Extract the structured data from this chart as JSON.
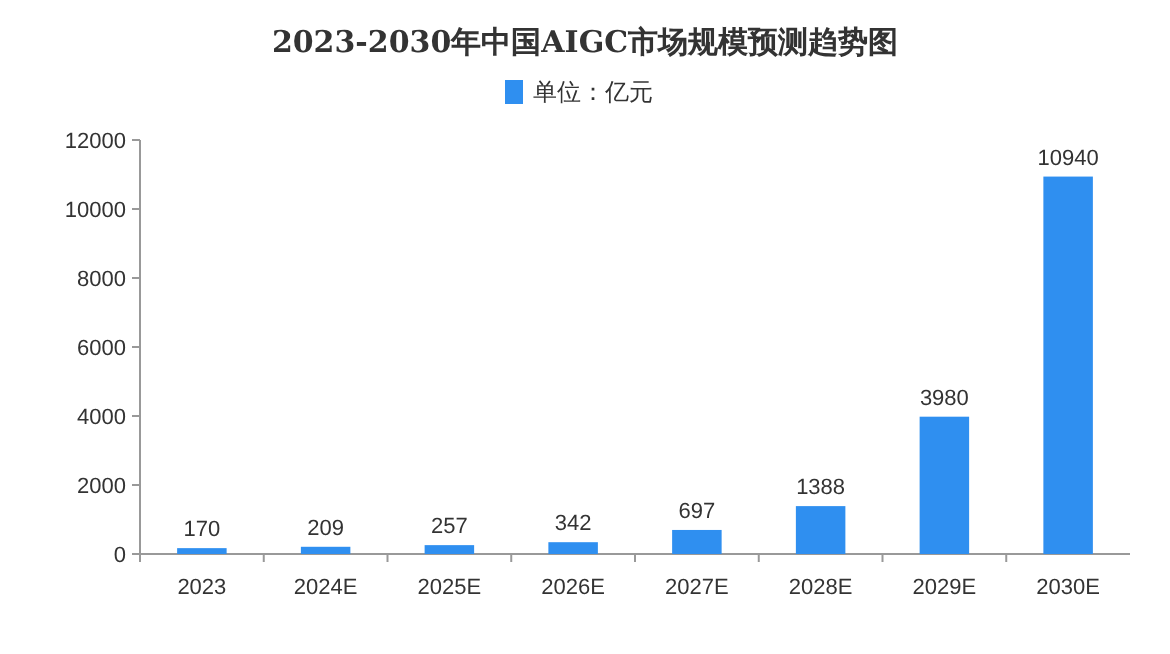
{
  "chart_data": {
    "type": "bar",
    "title": "2023-2030年中国AIGC市场规模预测趋势图",
    "categories": [
      "2023",
      "2024E",
      "2025E",
      "2026E",
      "2027E",
      "2028E",
      "2029E",
      "2030E"
    ],
    "series": [
      {
        "name": "单位：亿元",
        "color": "#2f8ff0",
        "values": [
          170,
          209,
          257,
          342,
          697,
          1388,
          3980,
          10940
        ]
      }
    ],
    "ylim": [
      0,
      12000
    ],
    "yticks": [
      0,
      2000,
      4000,
      6000,
      8000,
      10000,
      12000
    ],
    "data_labels": true,
    "legend": "top",
    "grid": false
  }
}
